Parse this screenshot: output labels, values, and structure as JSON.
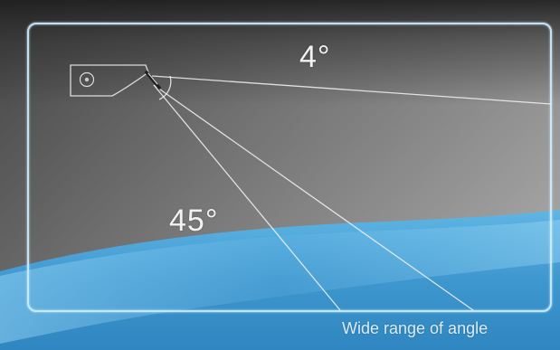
{
  "angles": {
    "top": "4°",
    "bottom": "45°"
  },
  "caption": "Wide range of angle",
  "colors": {
    "background_dark": "#3a3a3a",
    "background_light": "#9a9a9a",
    "water": "#4aa3d8",
    "frame": "#cfeeff",
    "beam": "#f4f4f4"
  },
  "icons": {
    "device": "sensor-mount-icon"
  }
}
